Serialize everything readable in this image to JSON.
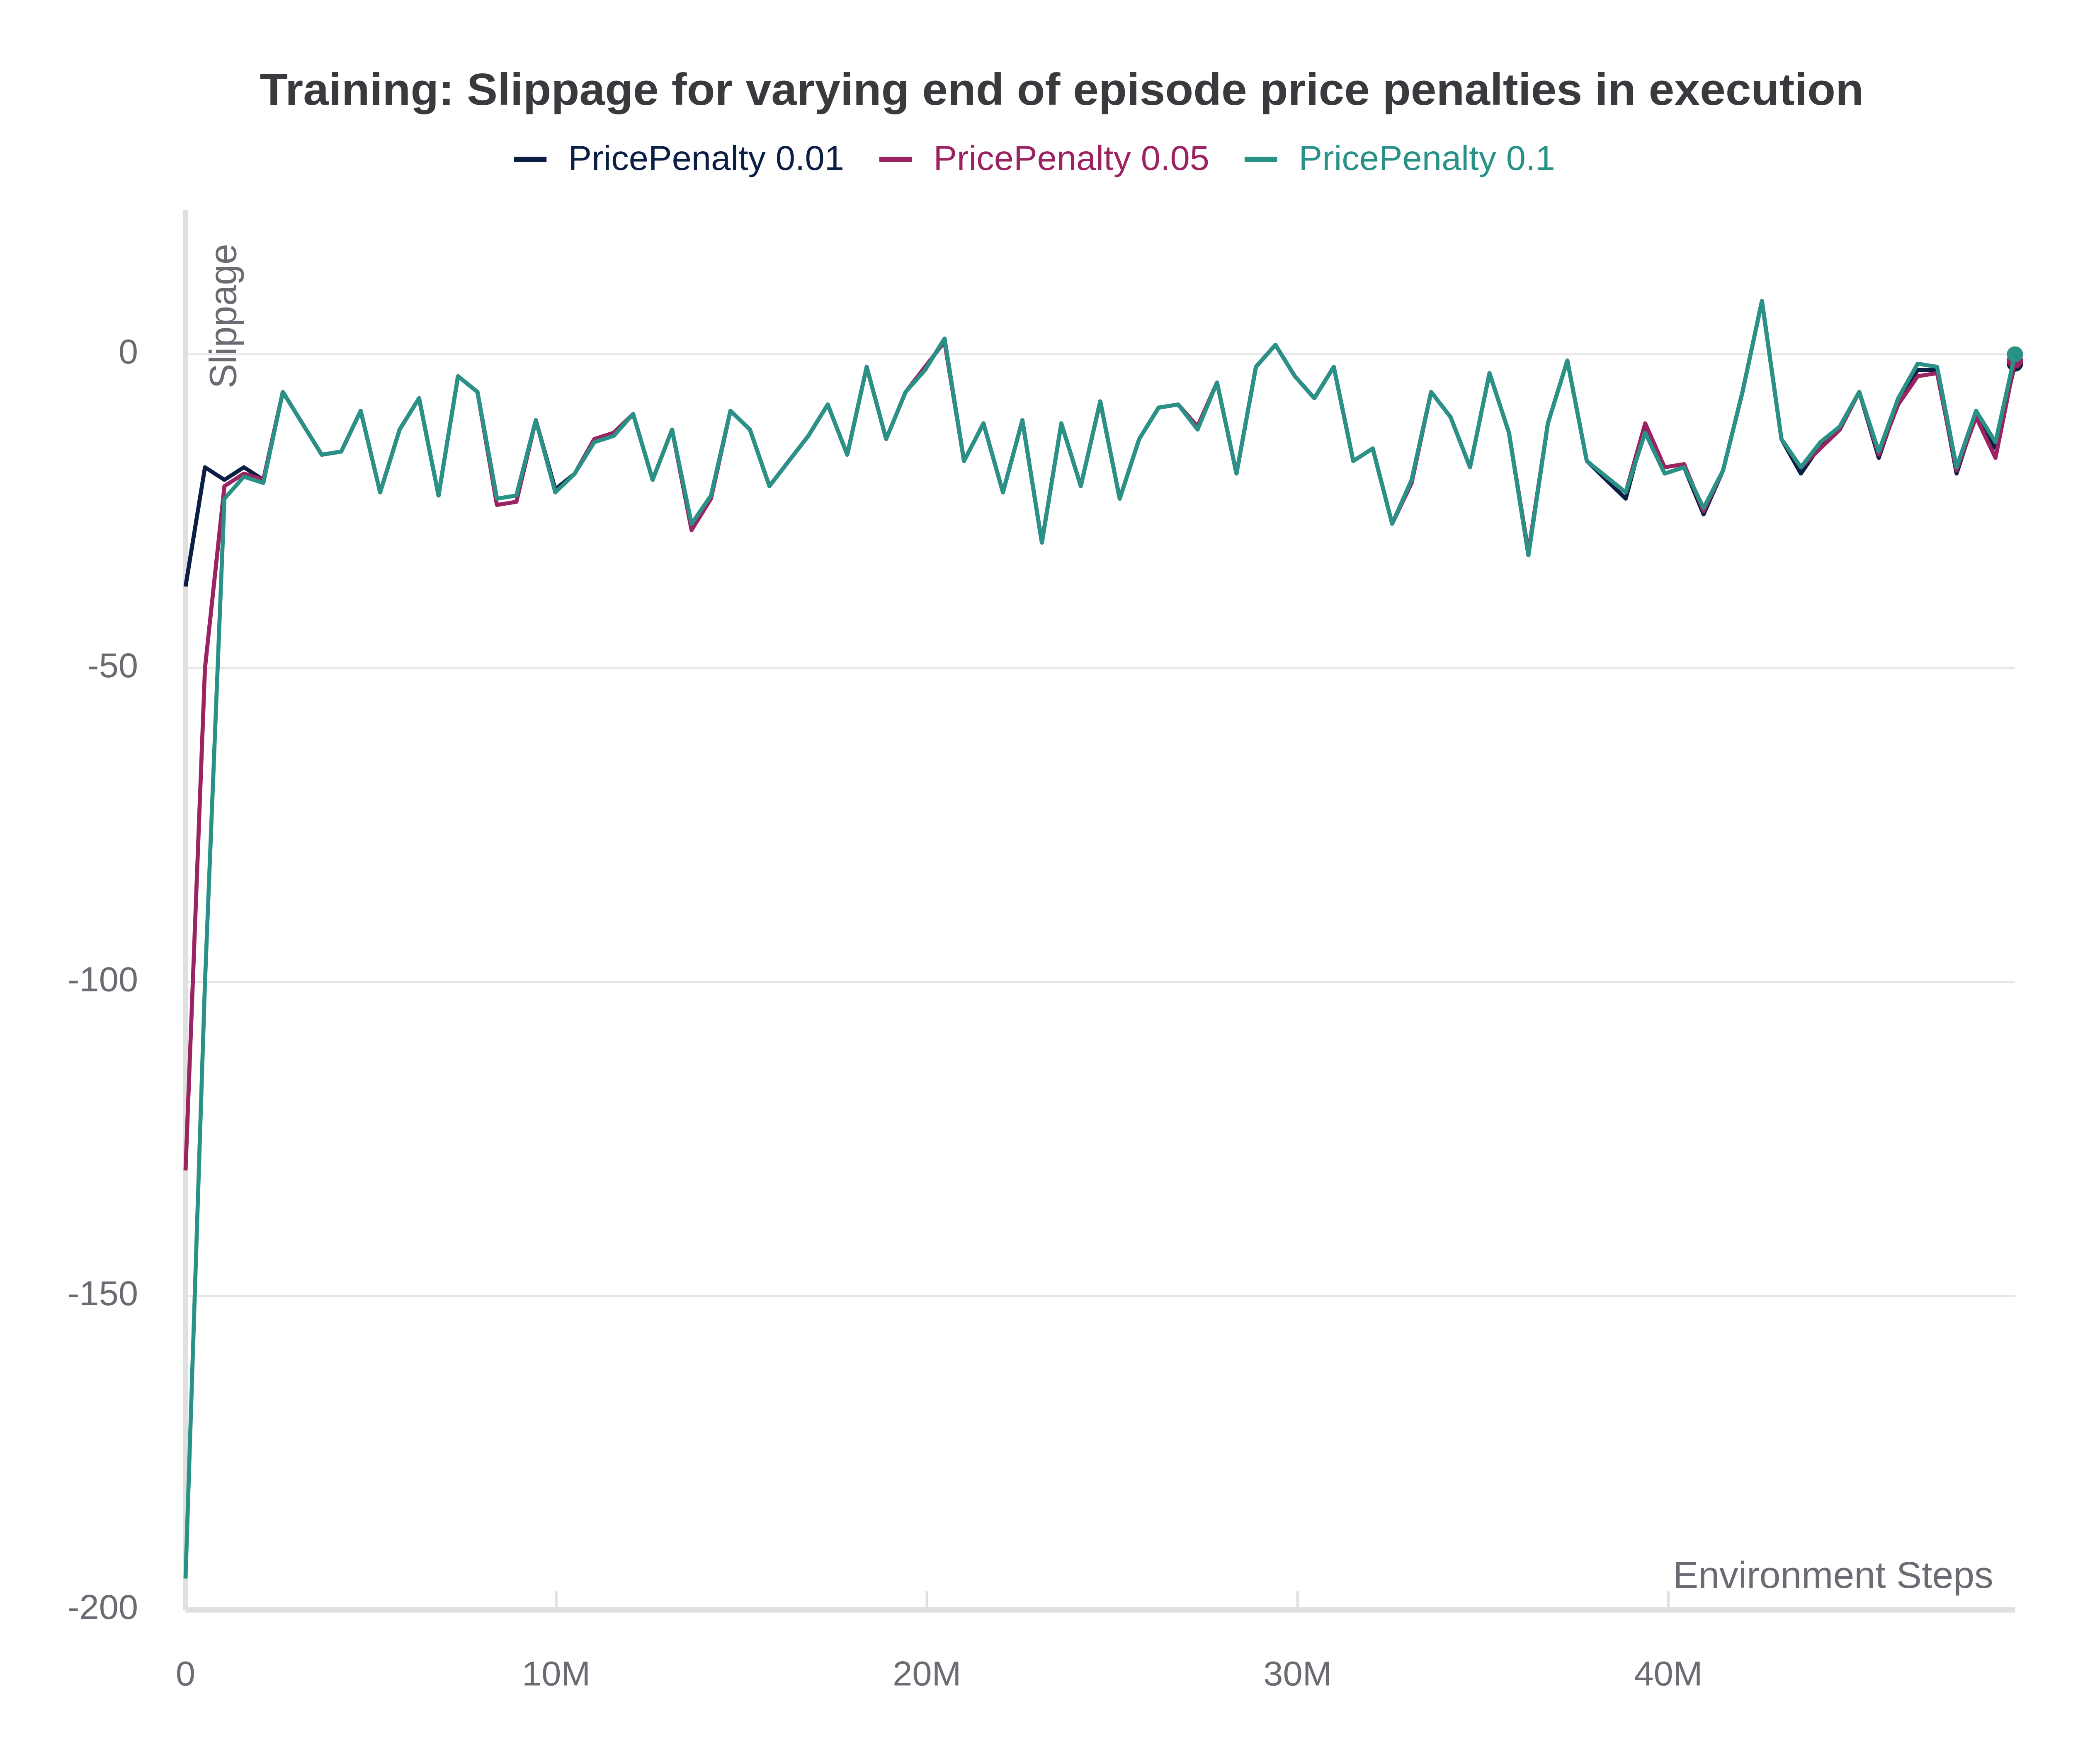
{
  "chart_data": {
    "type": "line",
    "title": "Training: Slippage for varying end of episode price penalties in execution",
    "x_label": "Environment Steps",
    "y_label": "Slippage",
    "x": [
      0,
      525000,
      1050000,
      1575000,
      2100000,
      2625000,
      3150000,
      3675000,
      4200000,
      4725000,
      5250000,
      5775000,
      6300000,
      6825000,
      7350000,
      7875000,
      8400000,
      8925000,
      9450000,
      9975000,
      10500000,
      11025000,
      11550000,
      12075000,
      12600000,
      13125000,
      13650000,
      14175000,
      14700000,
      15225000,
      15750000,
      16275000,
      16800000,
      17325000,
      17850000,
      18375000,
      18900000,
      19425000,
      19950000,
      20475000,
      21000000,
      21525000,
      22050000,
      22575000,
      23100000,
      23625000,
      24150000,
      24675000,
      25200000,
      25725000,
      26250000,
      26775000,
      27300000,
      27825000,
      28350000,
      28875000,
      29400000,
      29925000,
      30450000,
      30975000,
      31500000,
      32025000,
      32550000,
      33075000,
      33600000,
      34125000,
      34650000,
      35175000,
      35700000,
      36225000,
      36750000,
      37275000,
      37800000,
      38325000,
      38850000,
      39375000,
      39900000,
      40425000,
      40950000,
      41475000,
      42000000,
      42525000,
      43050000,
      43575000,
      44100000,
      44625000,
      45150000,
      45675000,
      46200000,
      46725000,
      47250000,
      47775000,
      48300000,
      48825000,
      49350000
    ],
    "series": [
      {
        "name": "PricePenalty 0.01",
        "color": "#0b1f44",
        "values": [
          -37,
          -18,
          -20,
          -18,
          -20,
          -6,
          -11,
          -16,
          -15.5,
          -9,
          -22,
          -12,
          -7,
          -22.5,
          -3.5,
          -6,
          -23,
          -22.5,
          -10.5,
          -21.5,
          -19,
          -14,
          -13,
          -9.5,
          -20,
          -12,
          -27.5,
          -22.5,
          -9,
          -12,
          -21,
          -17,
          -13,
          -8,
          -16,
          -2,
          -13.5,
          -6,
          -2.5,
          2.5,
          -17,
          -11,
          -22,
          -10.5,
          -30,
          -11,
          -21,
          -7.5,
          -23,
          -13.5,
          -8.5,
          -8,
          -11.5,
          -4.5,
          -19,
          -2,
          1.5,
          -3.5,
          -7,
          -2,
          -17,
          -15,
          -27,
          -20,
          -6,
          -10,
          -18,
          -3,
          -12.5,
          -32,
          -11,
          -1,
          -17,
          -20,
          -23,
          -11.5,
          -19,
          -18,
          -25.5,
          -18.5,
          -6,
          8.5,
          -13.5,
          -19,
          -14.5,
          -11.5,
          -6,
          -16.5,
          -7.5,
          -2.5,
          -2.5,
          -19,
          -9.5,
          -15,
          -1.5
        ]
      },
      {
        "name": "PricePenalty 0.05",
        "color": "#9b2362",
        "values": [
          -130,
          -50,
          -21,
          -19,
          -20,
          -6,
          -11,
          -16,
          -15.5,
          -9,
          -22,
          -12,
          -7,
          -22.5,
          -3.5,
          -6,
          -24,
          -23.5,
          -10.5,
          -22,
          -19,
          -13.5,
          -12.5,
          -9.5,
          -20,
          -12,
          -28,
          -23,
          -9,
          -12,
          -21,
          -17,
          -13,
          -8,
          -16,
          -2,
          -13.5,
          -6,
          -2,
          2,
          -17,
          -11,
          -22,
          -10.5,
          -30,
          -11,
          -21,
          -7.5,
          -23,
          -13.5,
          -8.5,
          -8,
          -11.5,
          -4.5,
          -19,
          -2,
          1.5,
          -3.5,
          -7,
          -2,
          -17,
          -15,
          -27,
          -20.5,
          -6,
          -10,
          -18,
          -3,
          -12.5,
          -31.5,
          -11,
          -1,
          -17,
          -19.5,
          -22,
          -11,
          -18,
          -17.5,
          -25,
          -18.5,
          -6,
          8.5,
          -13.5,
          -18,
          -15,
          -12,
          -6,
          -16,
          -8,
          -3.5,
          -3,
          -18.5,
          -10,
          -16.5,
          -1
        ]
      },
      {
        "name": "PricePenalty 0.1",
        "color": "#2a9187",
        "values": [
          -195,
          -100,
          -23,
          -19.5,
          -20.5,
          -6,
          -11,
          -16,
          -15.5,
          -9,
          -22,
          -12,
          -7,
          -22.5,
          -3.5,
          -6,
          -23,
          -22.5,
          -10.5,
          -22,
          -19,
          -14,
          -13,
          -9.5,
          -20,
          -12,
          -27,
          -22.5,
          -9,
          -12,
          -21,
          -17,
          -13,
          -8,
          -16,
          -2,
          -13.5,
          -6,
          -2.5,
          2.5,
          -17,
          -11,
          -22,
          -10.5,
          -30,
          -11,
          -21,
          -7.5,
          -23,
          -13.5,
          -8.5,
          -8,
          -12,
          -4.5,
          -19,
          -2,
          1.5,
          -3.5,
          -7,
          -2,
          -17,
          -15,
          -27,
          -20,
          -6,
          -10,
          -18,
          -3,
          -12.5,
          -32,
          -11,
          -1,
          -17,
          -19.5,
          -22,
          -12.5,
          -19,
          -18,
          -24.5,
          -18.5,
          -6,
          8.5,
          -13.5,
          -18,
          -14,
          -11.5,
          -6,
          -15.5,
          -7,
          -1.5,
          -2,
          -18,
          -9,
          -14,
          0
        ]
      }
    ],
    "xlim": [
      0,
      49350000
    ],
    "ylim": [
      -200,
      23
    ],
    "xticks": [
      0,
      {
        "value": 10000000,
        "label": "10M"
      },
      {
        "value": 20000000,
        "label": "20M"
      },
      {
        "value": 30000000,
        "label": "30M"
      },
      {
        "value": 40000000,
        "label": "40M"
      }
    ],
    "yticks": [
      -200,
      -150,
      -100,
      -50,
      0
    ],
    "grid": true,
    "legend": "top"
  }
}
